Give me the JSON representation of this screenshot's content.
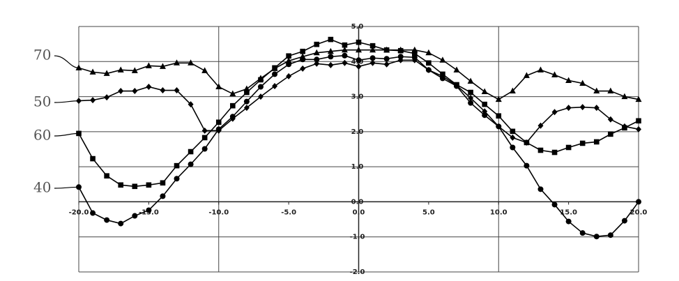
{
  "chart_data": {
    "type": "line",
    "x": [
      -20,
      -19,
      -18,
      -17,
      -16,
      -15,
      -14,
      -13,
      -12,
      -11,
      -10,
      -9,
      -8,
      -7,
      -6,
      -5,
      -4,
      -3,
      -2,
      -1,
      0,
      1,
      2,
      3,
      4,
      5,
      6,
      7,
      8,
      9,
      10,
      11,
      12,
      13,
      14,
      15,
      16,
      17,
      18,
      19,
      20
    ],
    "series": [
      {
        "name": "70",
        "color": "#000000",
        "marker": "triangle",
        "values": [
          3.82,
          3.7,
          3.66,
          3.76,
          3.74,
          3.88,
          3.86,
          3.96,
          3.96,
          3.74,
          3.28,
          3.08,
          3.22,
          3.52,
          3.8,
          4.02,
          4.14,
          4.25,
          4.29,
          4.33,
          4.33,
          4.33,
          4.33,
          4.33,
          4.33,
          4.25,
          4.04,
          3.76,
          3.44,
          3.14,
          2.92,
          3.16,
          3.6,
          3.76,
          3.62,
          3.46,
          3.38,
          3.16,
          3.16,
          3.0,
          2.92
        ]
      },
      {
        "name": "50",
        "color": "#000000",
        "marker": "diamond",
        "values": [
          2.88,
          2.9,
          2.98,
          3.16,
          3.16,
          3.28,
          3.18,
          3.18,
          2.78,
          2.03,
          2.03,
          2.37,
          2.68,
          3.0,
          3.3,
          3.58,
          3.8,
          3.94,
          3.9,
          3.96,
          3.86,
          3.96,
          3.92,
          4.04,
          4.04,
          3.76,
          3.58,
          3.32,
          2.96,
          2.58,
          2.15,
          1.83,
          1.69,
          2.17,
          2.56,
          2.68,
          2.7,
          2.68,
          2.35,
          2.15,
          2.07
        ]
      },
      {
        "name": "60",
        "color": "#000000",
        "marker": "square",
        "values": [
          1.95,
          1.23,
          0.74,
          0.48,
          0.44,
          0.48,
          0.54,
          1.03,
          1.43,
          1.83,
          2.27,
          2.74,
          3.12,
          3.48,
          3.82,
          4.16,
          4.29,
          4.49,
          4.63,
          4.47,
          4.55,
          4.45,
          4.33,
          4.31,
          4.23,
          3.96,
          3.64,
          3.34,
          3.12,
          2.78,
          2.45,
          2.01,
          1.69,
          1.47,
          1.41,
          1.55,
          1.67,
          1.71,
          1.93,
          2.11,
          2.31
        ]
      },
      {
        "name": "40",
        "color": "#000000",
        "marker": "circle",
        "values": [
          0.42,
          -0.32,
          -0.52,
          -0.62,
          -0.4,
          -0.24,
          0.16,
          0.66,
          1.07,
          1.51,
          2.07,
          2.43,
          2.86,
          3.28,
          3.64,
          3.92,
          4.06,
          4.06,
          4.14,
          4.17,
          4.04,
          4.1,
          4.08,
          4.14,
          4.12,
          3.76,
          3.52,
          3.3,
          2.82,
          2.47,
          2.15,
          1.55,
          1.03,
          0.36,
          -0.08,
          -0.56,
          -0.89,
          -0.99,
          -0.95,
          -0.54,
          0.0
        ]
      }
    ],
    "xlim": [
      -20,
      20
    ],
    "ylim": [
      -2,
      5
    ],
    "xticks": [
      {
        "value": -20,
        "label": "-20.0"
      },
      {
        "value": -15,
        "label": "-15.0"
      },
      {
        "value": -10,
        "label": "-10.0"
      },
      {
        "value": -5,
        "label": "-5.0"
      },
      {
        "value": 0,
        "label": "0.0"
      },
      {
        "value": 5,
        "label": "5.0"
      },
      {
        "value": 10,
        "label": "10.0"
      },
      {
        "value": 15,
        "label": "15.0"
      },
      {
        "value": 20,
        "label": "20.0"
      }
    ],
    "yticks": [
      {
        "value": -2,
        "label": "-2.0"
      },
      {
        "value": -1,
        "label": "-1.0"
      },
      {
        "value": 0,
        "label": "0.0"
      },
      {
        "value": 1,
        "label": "1.0"
      },
      {
        "value": 2,
        "label": "2.0"
      },
      {
        "value": 3,
        "label": "3.0"
      },
      {
        "value": 4,
        "label": "4.0"
      },
      {
        "value": 5,
        "label": "5.0"
      }
    ],
    "grid": true
  }
}
